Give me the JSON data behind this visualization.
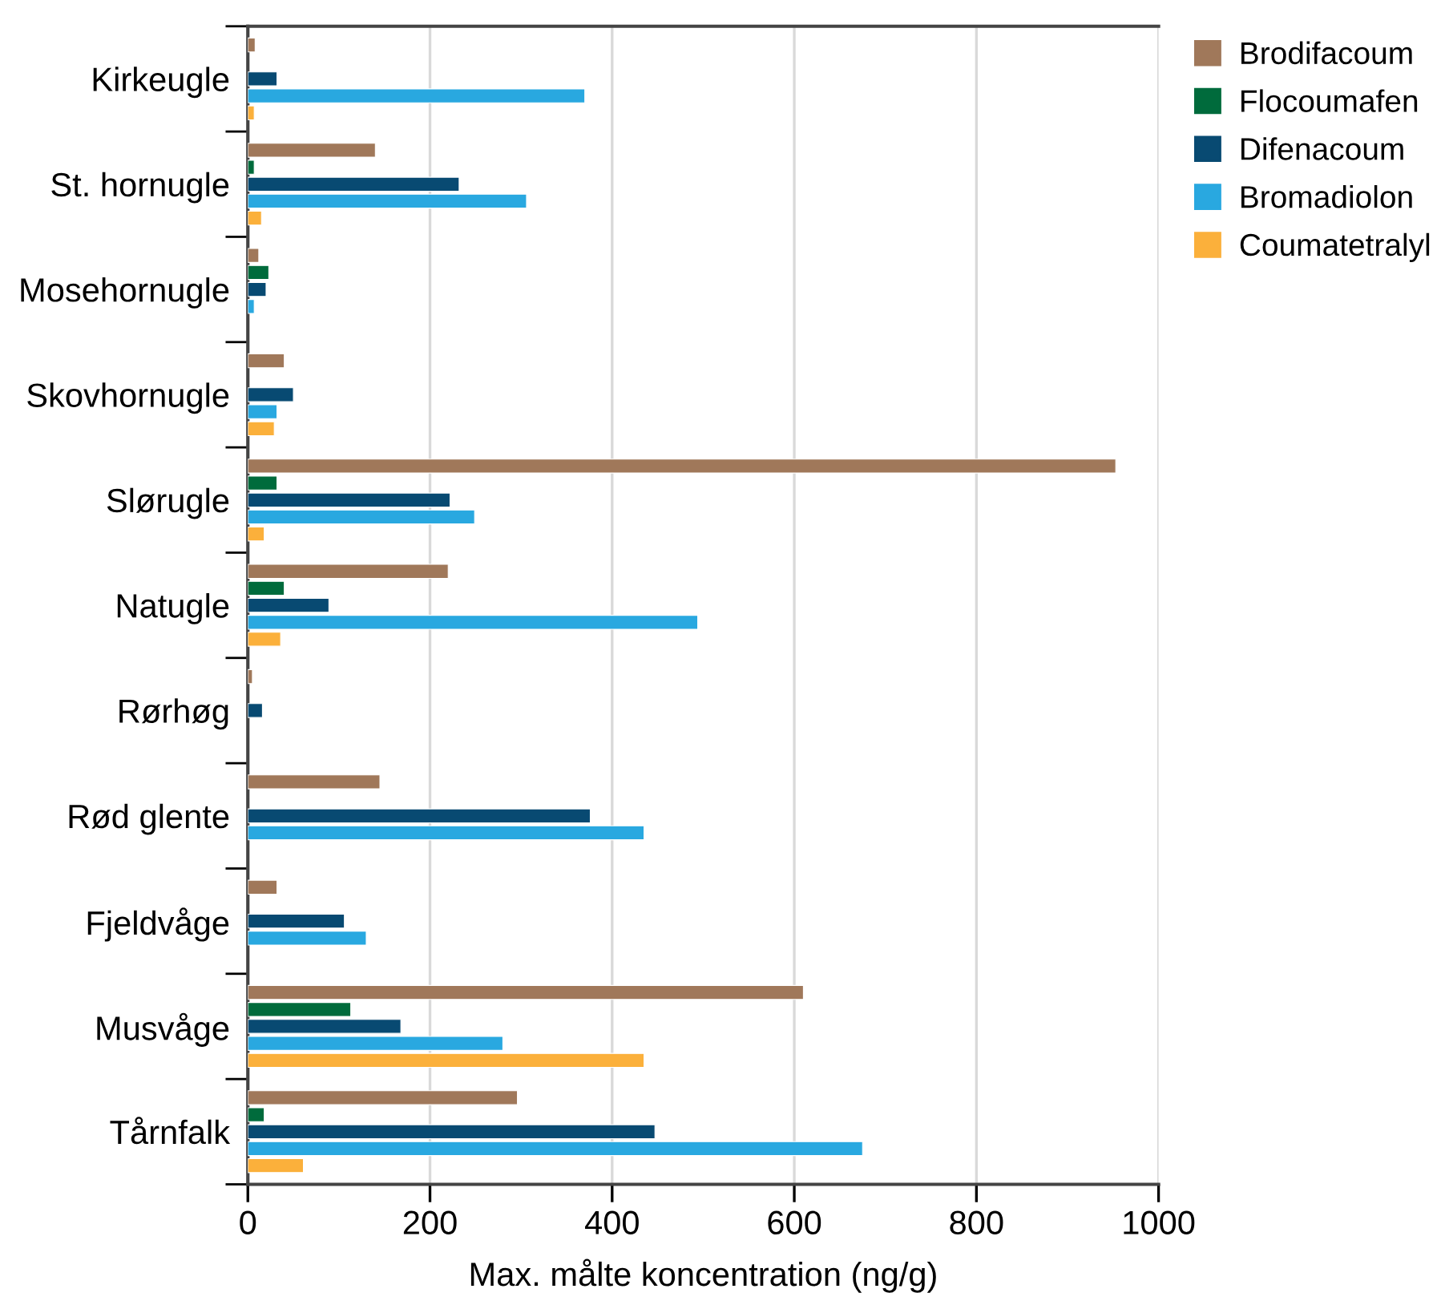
{
  "chart_data": {
    "type": "bar",
    "orientation": "horizontal",
    "xlabel": "Max. målte koncentration (ng/g)",
    "categories": [
      "Kirkeugle",
      "St. hornugle",
      "Mosehornugle",
      "Skovhornugle",
      "Slørugle",
      "Natugle",
      "Rørhøg",
      "Rød glente",
      "Fjeldvåge",
      "Musvåge",
      "Tårnfalk"
    ],
    "series": [
      {
        "name": "Brodifacoum",
        "color": "#a0785a",
        "values": [
          8,
          140,
          12,
          40,
          953,
          220,
          5,
          145,
          32,
          610,
          296
        ]
      },
      {
        "name": "Flocoumafen",
        "color": "#006b3c",
        "values": [
          null,
          7,
          23,
          null,
          32,
          40,
          null,
          null,
          null,
          113,
          18
        ]
      },
      {
        "name": "Difenacoum",
        "color": "#084a72",
        "values": [
          32,
          232,
          20,
          50,
          222,
          89,
          16,
          376,
          106,
          168,
          447
        ]
      },
      {
        "name": "Bromadiolon",
        "color": "#29a8e0",
        "values": [
          370,
          306,
          7,
          32,
          249,
          494,
          null,
          435,
          130,
          280,
          675
        ]
      },
      {
        "name": "Coumatetralyl",
        "color": "#fbb03b",
        "values": [
          7,
          15,
          null,
          29,
          18,
          36,
          null,
          null,
          null,
          435,
          61
        ]
      }
    ],
    "xlim": [
      0,
      1000
    ],
    "xticks": [
      0,
      200,
      400,
      600,
      800,
      1000
    ],
    "grid": "x",
    "legend": "top right"
  }
}
